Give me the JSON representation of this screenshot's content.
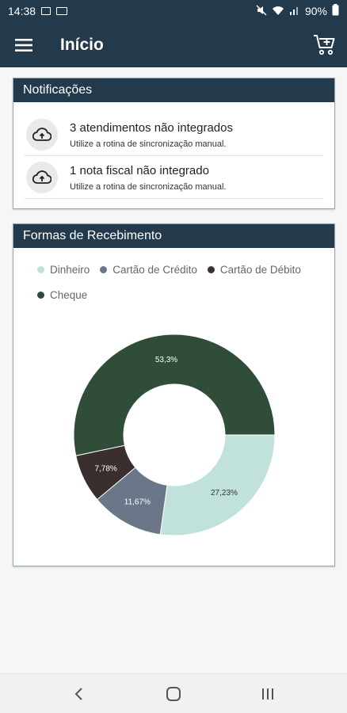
{
  "status": {
    "time": "14:38",
    "battery": "90%"
  },
  "appbar": {
    "title": "Início"
  },
  "notifications": {
    "header": "Notificações",
    "items": [
      {
        "title": "3 atendimentos não integrados",
        "subtitle": "Utilize a rotina de sincronização manual.",
        "icon": "cloud-upload-icon"
      },
      {
        "title": "1 nota fiscal não integrado",
        "subtitle": "Utilize a rotina de sincronização manual.",
        "icon": "cloud-upload-icon"
      }
    ]
  },
  "receipts": {
    "header": "Formas de Recebimento"
  },
  "chart_data": {
    "type": "pie",
    "variant": "donut",
    "series": [
      {
        "name": "Dinheiro",
        "value": 27.23,
        "label": "27,23%",
        "color": "#c1e2dc"
      },
      {
        "name": "Cartão de Crédito",
        "value": 11.67,
        "label": "11,67%",
        "color": "#6b7788"
      },
      {
        "name": "Cartão de Débito",
        "value": 7.78,
        "label": "7,78%",
        "color": "#3a2e2e"
      },
      {
        "name": "Cheque",
        "value": 53.3,
        "label": "53,3%",
        "color": "#2f4d38"
      }
    ],
    "legend_position": "top"
  },
  "colors": {
    "primary": "#223a4c",
    "background": "#f6f6f6"
  }
}
